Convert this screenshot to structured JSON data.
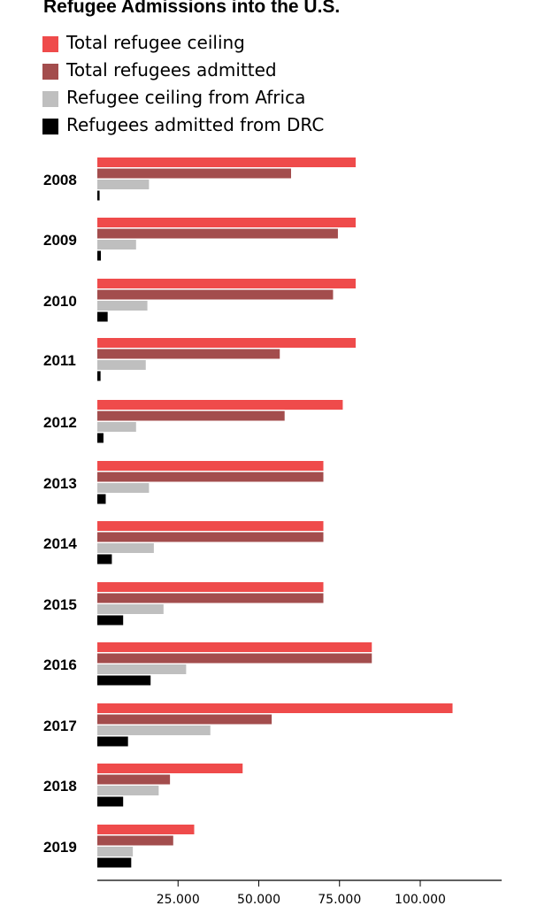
{
  "chart_data": {
    "type": "bar",
    "orientation": "horizontal",
    "title": "Refugee Admissions into the U.S.",
    "categories": [
      "2008",
      "2009",
      "2010",
      "2011",
      "2012",
      "2013",
      "2014",
      "2015",
      "2016",
      "2017",
      "2018",
      "2019"
    ],
    "series": [
      {
        "name": "Total refugee ceiling",
        "color": "#ef4b4b",
        "values": [
          80000,
          80000,
          80000,
          80000,
          76000,
          70000,
          70000,
          70000,
          85000,
          110000,
          45000,
          30000
        ]
      },
      {
        "name": "Total refugees admitted",
        "color": "#a34d4d",
        "values": [
          60000,
          74500,
          73000,
          56500,
          58000,
          70000,
          70000,
          70000,
          85000,
          54000,
          22500,
          23500
        ]
      },
      {
        "name": "Refugee ceiling from Africa",
        "color": "#bfbfbf",
        "values": [
          16000,
          12000,
          15500,
          15000,
          12000,
          16000,
          17500,
          20500,
          27500,
          35000,
          19000,
          11000
        ]
      },
      {
        "name": "Refugees admitted from DRC",
        "color": "#000000",
        "values": [
          700,
          1100,
          3200,
          1000,
          1900,
          2600,
          4500,
          8000,
          16500,
          9500,
          8000,
          10500
        ]
      }
    ],
    "xlim": [
      0,
      125000
    ],
    "x_ticks": [
      25000,
      50000,
      75000,
      100000
    ],
    "x_tick_labels": [
      "25.000",
      "50.000",
      "75.000",
      "100.000"
    ],
    "grid": false,
    "legend_position": "top-left"
  }
}
